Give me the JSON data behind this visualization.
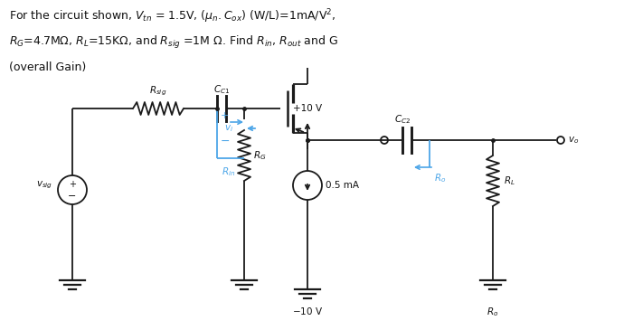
{
  "bg_color": "#ffffff",
  "line_color": "#1a1a1a",
  "blue_color": "#4da6e8",
  "text_color": "#111111",
  "fig_width": 7.0,
  "fig_height": 3.65,
  "title_line1": "For the circuit shown, $V_{tn}$ = 1.5V, ($\\mu_n.C_{ox}$) (W/L)=1mA/V$^2$,",
  "title_line2": "$R_G$=4.7MΩ, $R_L$=15KΩ, and $R_{sig}$ =1M Ω. Find $R_{in}$, $R_{out}$ and G",
  "title_line3": "(overall Gain)"
}
